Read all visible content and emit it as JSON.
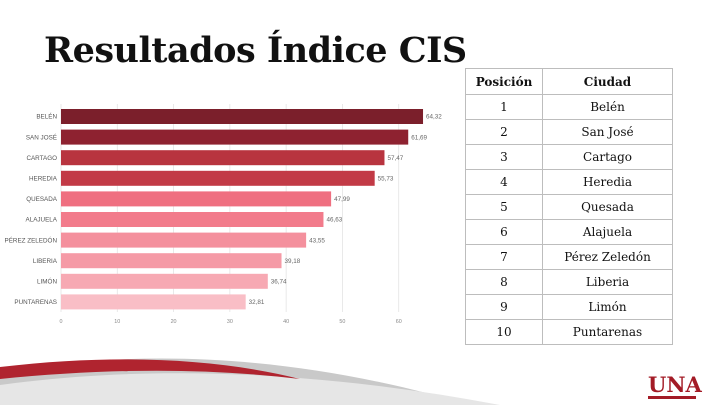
{
  "slide": {
    "title": "Resultados Índice CIS"
  },
  "chart_data": {
    "type": "bar",
    "orientation": "horizontal",
    "categories": [
      "BELÉN",
      "SAN JOSÉ",
      "CARTAGO",
      "HEREDIA",
      "QUESADA",
      "ALAJUELA",
      "PÉREZ ZELEDÓN",
      "LIBERIA",
      "LIMÓN",
      "PUNTARENAS"
    ],
    "values": [
      64.32,
      61.69,
      57.47,
      55.73,
      47.99,
      46.63,
      43.55,
      39.18,
      36.74,
      32.81
    ],
    "value_labels": [
      "64,32",
      "61,69",
      "57,47",
      "55,73",
      "47,99",
      "46,63",
      "43,55",
      "39,18",
      "36,74",
      "32,81"
    ],
    "bar_colors": [
      "#7b1f2b",
      "#8e2230",
      "#b8343f",
      "#c23a46",
      "#ef6f80",
      "#f27b8b",
      "#f4909d",
      "#f59aa6",
      "#f7a9b3",
      "#f9bec6"
    ],
    "xlim": [
      0,
      70
    ],
    "xticks": [
      0,
      10,
      20,
      30,
      40,
      50,
      60
    ],
    "title": "",
    "xlabel": "",
    "ylabel": "",
    "grid": true
  },
  "table": {
    "headers": [
      "Posición",
      "Ciudad"
    ],
    "rows": [
      [
        "1",
        "Belén"
      ],
      [
        "2",
        "San José"
      ],
      [
        "3",
        "Cartago"
      ],
      [
        "4",
        "Heredia"
      ],
      [
        "5",
        "Quesada"
      ],
      [
        "6",
        "Alajuela"
      ],
      [
        "7",
        "Pérez Zeledón"
      ],
      [
        "8",
        "Liberia"
      ],
      [
        "9",
        "Limón"
      ],
      [
        "10",
        "Puntarenas"
      ]
    ]
  },
  "logo": {
    "text": "UNA",
    "color": "#a31b26"
  }
}
